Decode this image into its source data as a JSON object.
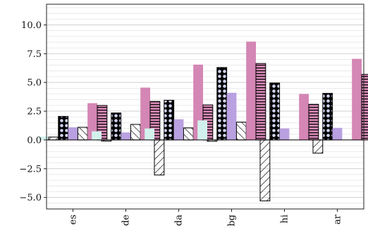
{
  "chart_data": {
    "type": "bar",
    "categories": [
      "es",
      "de",
      "da",
      "bg",
      "hi",
      "ar"
    ],
    "yticks": [
      -5.0,
      -2.5,
      0.0,
      2.5,
      5.0,
      7.5,
      10.0
    ],
    "ytick_labels": [
      "−5.0",
      "−2.5",
      "0.0",
      "2.5",
      "5.0",
      "7.5",
      "10.0"
    ],
    "ylim": [
      -6.0,
      11.8
    ],
    "grid": true,
    "legend": "none",
    "series": [
      {
        "color": "#d3f1ec",
        "pattern": "none",
        "values": [
          0.3,
          0.75,
          1.0,
          1.7,
          0.0,
          0.0
        ]
      },
      {
        "color": "#ffffff",
        "pattern": "diagonal",
        "values": [
          0.25,
          -0.1,
          -3.05,
          -0.12,
          -5.3,
          -1.15
        ]
      },
      {
        "color": "#cfd3ee",
        "pattern": "circles",
        "values": [
          2.05,
          2.35,
          3.45,
          6.3,
          4.95,
          4.05
        ]
      },
      {
        "color": "#b9a0e0",
        "pattern": "none",
        "values": [
          1.1,
          0.65,
          1.8,
          4.1,
          1.0,
          1.05
        ]
      },
      {
        "color": "#b9a0e0",
        "pattern": "backslash",
        "values": [
          1.1,
          1.35,
          1.05,
          1.55,
          0.0,
          0.0
        ]
      },
      {
        "color": "#d486b4",
        "pattern": "none",
        "values": [
          3.2,
          4.55,
          6.55,
          8.55,
          4.0,
          7.05
        ]
      },
      {
        "color": "#d486b4",
        "pattern": "hlines",
        "values": [
          3.0,
          3.35,
          3.05,
          6.65,
          3.1,
          5.7
        ]
      }
    ]
  }
}
